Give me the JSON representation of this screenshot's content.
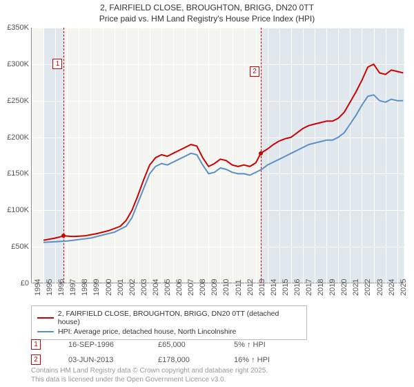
{
  "title_line1": "2, FAIRFIELD CLOSE, BROUGHTON, BRIGG, DN20 0TT",
  "title_line2": "Price paid vs. HM Land Registry's House Price Index (HPI)",
  "chart": {
    "type": "line",
    "background_color": "#f4f4f1",
    "grid_color": "#ffffff",
    "axis_color": "#888888",
    "x_start": 1994,
    "x_end": 2025.6,
    "x_ticks": [
      1994,
      1995,
      1996,
      1997,
      1998,
      1999,
      2000,
      2001,
      2002,
      2003,
      2004,
      2005,
      2006,
      2007,
      2008,
      2009,
      2010,
      2011,
      2012,
      2013,
      2014,
      2015,
      2016,
      2017,
      2018,
      2019,
      2020,
      2021,
      2022,
      2023,
      2024,
      2025
    ],
    "ylim": [
      0,
      350000
    ],
    "y_ticks": [
      0,
      50000,
      100000,
      150000,
      200000,
      250000,
      300000,
      350000
    ],
    "y_tick_labels": [
      "£0",
      "£50K",
      "£100K",
      "£150K",
      "£200K",
      "£250K",
      "£300K",
      "£350K"
    ],
    "shade_regions": [
      {
        "from": 1995.0,
        "to": 1996.72
      },
      {
        "from": 2013.42,
        "to": 2025.6
      }
    ],
    "ref_lines": [
      {
        "n": "1",
        "x": 1996.72,
        "box_top": 45
      },
      {
        "n": "2",
        "x": 2013.42,
        "box_top": 56
      }
    ],
    "series": [
      {
        "name": "price_paid",
        "color": "#cc0000",
        "width": 2,
        "points": [
          [
            1995.0,
            59000
          ],
          [
            1996.0,
            62000
          ],
          [
            1996.72,
            65000
          ],
          [
            1997.5,
            64000
          ],
          [
            1998.5,
            65000
          ],
          [
            1999.5,
            68000
          ],
          [
            2000.5,
            72000
          ],
          [
            2001.5,
            78000
          ],
          [
            2002.0,
            86000
          ],
          [
            2002.5,
            100000
          ],
          [
            2003.0,
            120000
          ],
          [
            2003.5,
            142000
          ],
          [
            2004.0,
            162000
          ],
          [
            2004.5,
            172000
          ],
          [
            2005.0,
            176000
          ],
          [
            2005.5,
            174000
          ],
          [
            2006.0,
            178000
          ],
          [
            2006.5,
            182000
          ],
          [
            2007.0,
            186000
          ],
          [
            2007.5,
            190000
          ],
          [
            2008.0,
            188000
          ],
          [
            2008.5,
            172000
          ],
          [
            2009.0,
            160000
          ],
          [
            2009.5,
            164000
          ],
          [
            2010.0,
            170000
          ],
          [
            2010.5,
            168000
          ],
          [
            2011.0,
            162000
          ],
          [
            2011.5,
            160000
          ],
          [
            2012.0,
            162000
          ],
          [
            2012.5,
            160000
          ],
          [
            2013.0,
            165000
          ],
          [
            2013.42,
            178000
          ],
          [
            2014.0,
            184000
          ],
          [
            2014.5,
            190000
          ],
          [
            2015.0,
            195000
          ],
          [
            2015.5,
            198000
          ],
          [
            2016.0,
            200000
          ],
          [
            2016.5,
            206000
          ],
          [
            2017.0,
            212000
          ],
          [
            2017.5,
            216000
          ],
          [
            2018.0,
            218000
          ],
          [
            2018.5,
            220000
          ],
          [
            2019.0,
            222000
          ],
          [
            2019.5,
            222000
          ],
          [
            2020.0,
            226000
          ],
          [
            2020.5,
            234000
          ],
          [
            2021.0,
            248000
          ],
          [
            2021.5,
            262000
          ],
          [
            2022.0,
            278000
          ],
          [
            2022.5,
            296000
          ],
          [
            2023.0,
            300000
          ],
          [
            2023.5,
            288000
          ],
          [
            2024.0,
            286000
          ],
          [
            2024.5,
            292000
          ],
          [
            2025.0,
            290000
          ],
          [
            2025.5,
            288000
          ]
        ]
      },
      {
        "name": "hpi",
        "color": "#5b8fc7",
        "width": 2,
        "points": [
          [
            1995.0,
            56000
          ],
          [
            1996.0,
            57000
          ],
          [
            1997.0,
            58000
          ],
          [
            1998.0,
            60000
          ],
          [
            1999.0,
            62000
          ],
          [
            2000.0,
            66000
          ],
          [
            2001.0,
            70000
          ],
          [
            2002.0,
            78000
          ],
          [
            2002.5,
            90000
          ],
          [
            2003.0,
            110000
          ],
          [
            2003.5,
            130000
          ],
          [
            2004.0,
            150000
          ],
          [
            2004.5,
            160000
          ],
          [
            2005.0,
            164000
          ],
          [
            2005.5,
            162000
          ],
          [
            2006.0,
            166000
          ],
          [
            2006.5,
            170000
          ],
          [
            2007.0,
            174000
          ],
          [
            2007.5,
            178000
          ],
          [
            2008.0,
            176000
          ],
          [
            2008.5,
            162000
          ],
          [
            2009.0,
            150000
          ],
          [
            2009.5,
            152000
          ],
          [
            2010.0,
            158000
          ],
          [
            2010.5,
            156000
          ],
          [
            2011.0,
            152000
          ],
          [
            2011.5,
            150000
          ],
          [
            2012.0,
            150000
          ],
          [
            2012.5,
            148000
          ],
          [
            2013.0,
            152000
          ],
          [
            2013.5,
            156000
          ],
          [
            2014.0,
            162000
          ],
          [
            2014.5,
            166000
          ],
          [
            2015.0,
            170000
          ],
          [
            2015.5,
            174000
          ],
          [
            2016.0,
            178000
          ],
          [
            2016.5,
            182000
          ],
          [
            2017.0,
            186000
          ],
          [
            2017.5,
            190000
          ],
          [
            2018.0,
            192000
          ],
          [
            2018.5,
            194000
          ],
          [
            2019.0,
            196000
          ],
          [
            2019.5,
            196000
          ],
          [
            2020.0,
            200000
          ],
          [
            2020.5,
            206000
          ],
          [
            2021.0,
            218000
          ],
          [
            2021.5,
            230000
          ],
          [
            2022.0,
            244000
          ],
          [
            2022.5,
            256000
          ],
          [
            2023.0,
            258000
          ],
          [
            2023.5,
            250000
          ],
          [
            2024.0,
            248000
          ],
          [
            2024.5,
            252000
          ],
          [
            2025.0,
            250000
          ],
          [
            2025.5,
            250000
          ]
        ]
      }
    ],
    "markers": [
      {
        "x": 1996.72,
        "y": 65000,
        "color": "#cc0000"
      },
      {
        "x": 2013.42,
        "y": 178000,
        "color": "#cc0000"
      }
    ]
  },
  "legend": {
    "items": [
      {
        "color": "#cc0000",
        "label": "2, FAIRFIELD CLOSE, BROUGHTON, BRIGG, DN20 0TT (detached house)"
      },
      {
        "color": "#5b8fc7",
        "label": "HPI: Average price, detached house, North Lincolnshire"
      }
    ]
  },
  "sales": [
    {
      "n": "1",
      "date": "16-SEP-1996",
      "price": "£65,000",
      "pct": "5% ↑ HPI"
    },
    {
      "n": "2",
      "date": "03-JUN-2013",
      "price": "£178,000",
      "pct": "16% ↑ HPI"
    }
  ],
  "footer_line1": "Contains HM Land Registry data © Crown copyright and database right 2025.",
  "footer_line2": "This data is licensed under the Open Government Licence v3.0."
}
